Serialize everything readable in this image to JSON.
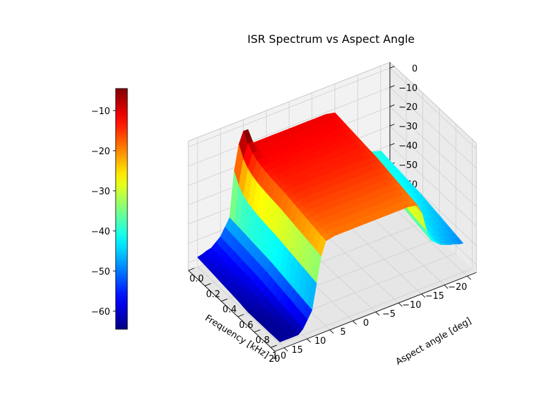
{
  "chart_data": {
    "type": "surface",
    "title": "ISR Spectrum vs Aspect Angle",
    "xlabel": "Frequency [kHz]",
    "ylabel": "Aspect angle [deg]",
    "zlabel": "",
    "x_ticks": [
      -20,
      -15,
      -10,
      -5,
      0,
      5,
      10,
      15,
      20
    ],
    "y_ticks": [
      1.0,
      0.8,
      0.6,
      0.4,
      0.2,
      0.0
    ],
    "x_tick_labels": [
      "−20",
      "−15",
      "−10",
      "−5",
      "0",
      "5",
      "10",
      "15",
      "20"
    ],
    "y_tick_labels": [
      "1.0",
      "0.8",
      "0.6",
      "0.4",
      "0.2",
      "0.0"
    ],
    "z_ticks": [
      0,
      -10,
      -20,
      -30,
      -40,
      -50,
      -60
    ],
    "z_tick_labels": [
      "0",
      "−10",
      "−20",
      "−30",
      "−40",
      "−50",
      "−60"
    ],
    "xlim": [
      -22,
      22
    ],
    "ylim": [
      0,
      1.05
    ],
    "zlim": [
      -64,
      3
    ],
    "colormap": "jet",
    "color_range": [
      -64.5,
      -4.5
    ],
    "colorbar_ticks": [
      -10,
      -20,
      -30,
      -40,
      -50,
      -60
    ],
    "colorbar_tick_labels": [
      "−10",
      "−20",
      "−30",
      "−40",
      "−50",
      "−60"
    ],
    "grid": true,
    "surface_profile": {
      "frequency_khz": [
        -20,
        -17,
        -15,
        -13,
        -12,
        -11,
        -10,
        -8,
        -5,
        -3,
        0,
        3,
        5,
        8,
        10,
        11,
        12,
        13,
        15,
        17,
        20
      ],
      "power_db_at_aspect_0.5": [
        -44,
        -42,
        -40,
        -36,
        -30,
        -20,
        -15,
        -14,
        -14,
        -14,
        -14,
        -14,
        -14,
        -14,
        -15,
        -22,
        -35,
        -48,
        -56,
        -60,
        -62
      ],
      "peak_db_at_aspect_0": -4,
      "floor_db_at_aspect_1": -63
    }
  }
}
